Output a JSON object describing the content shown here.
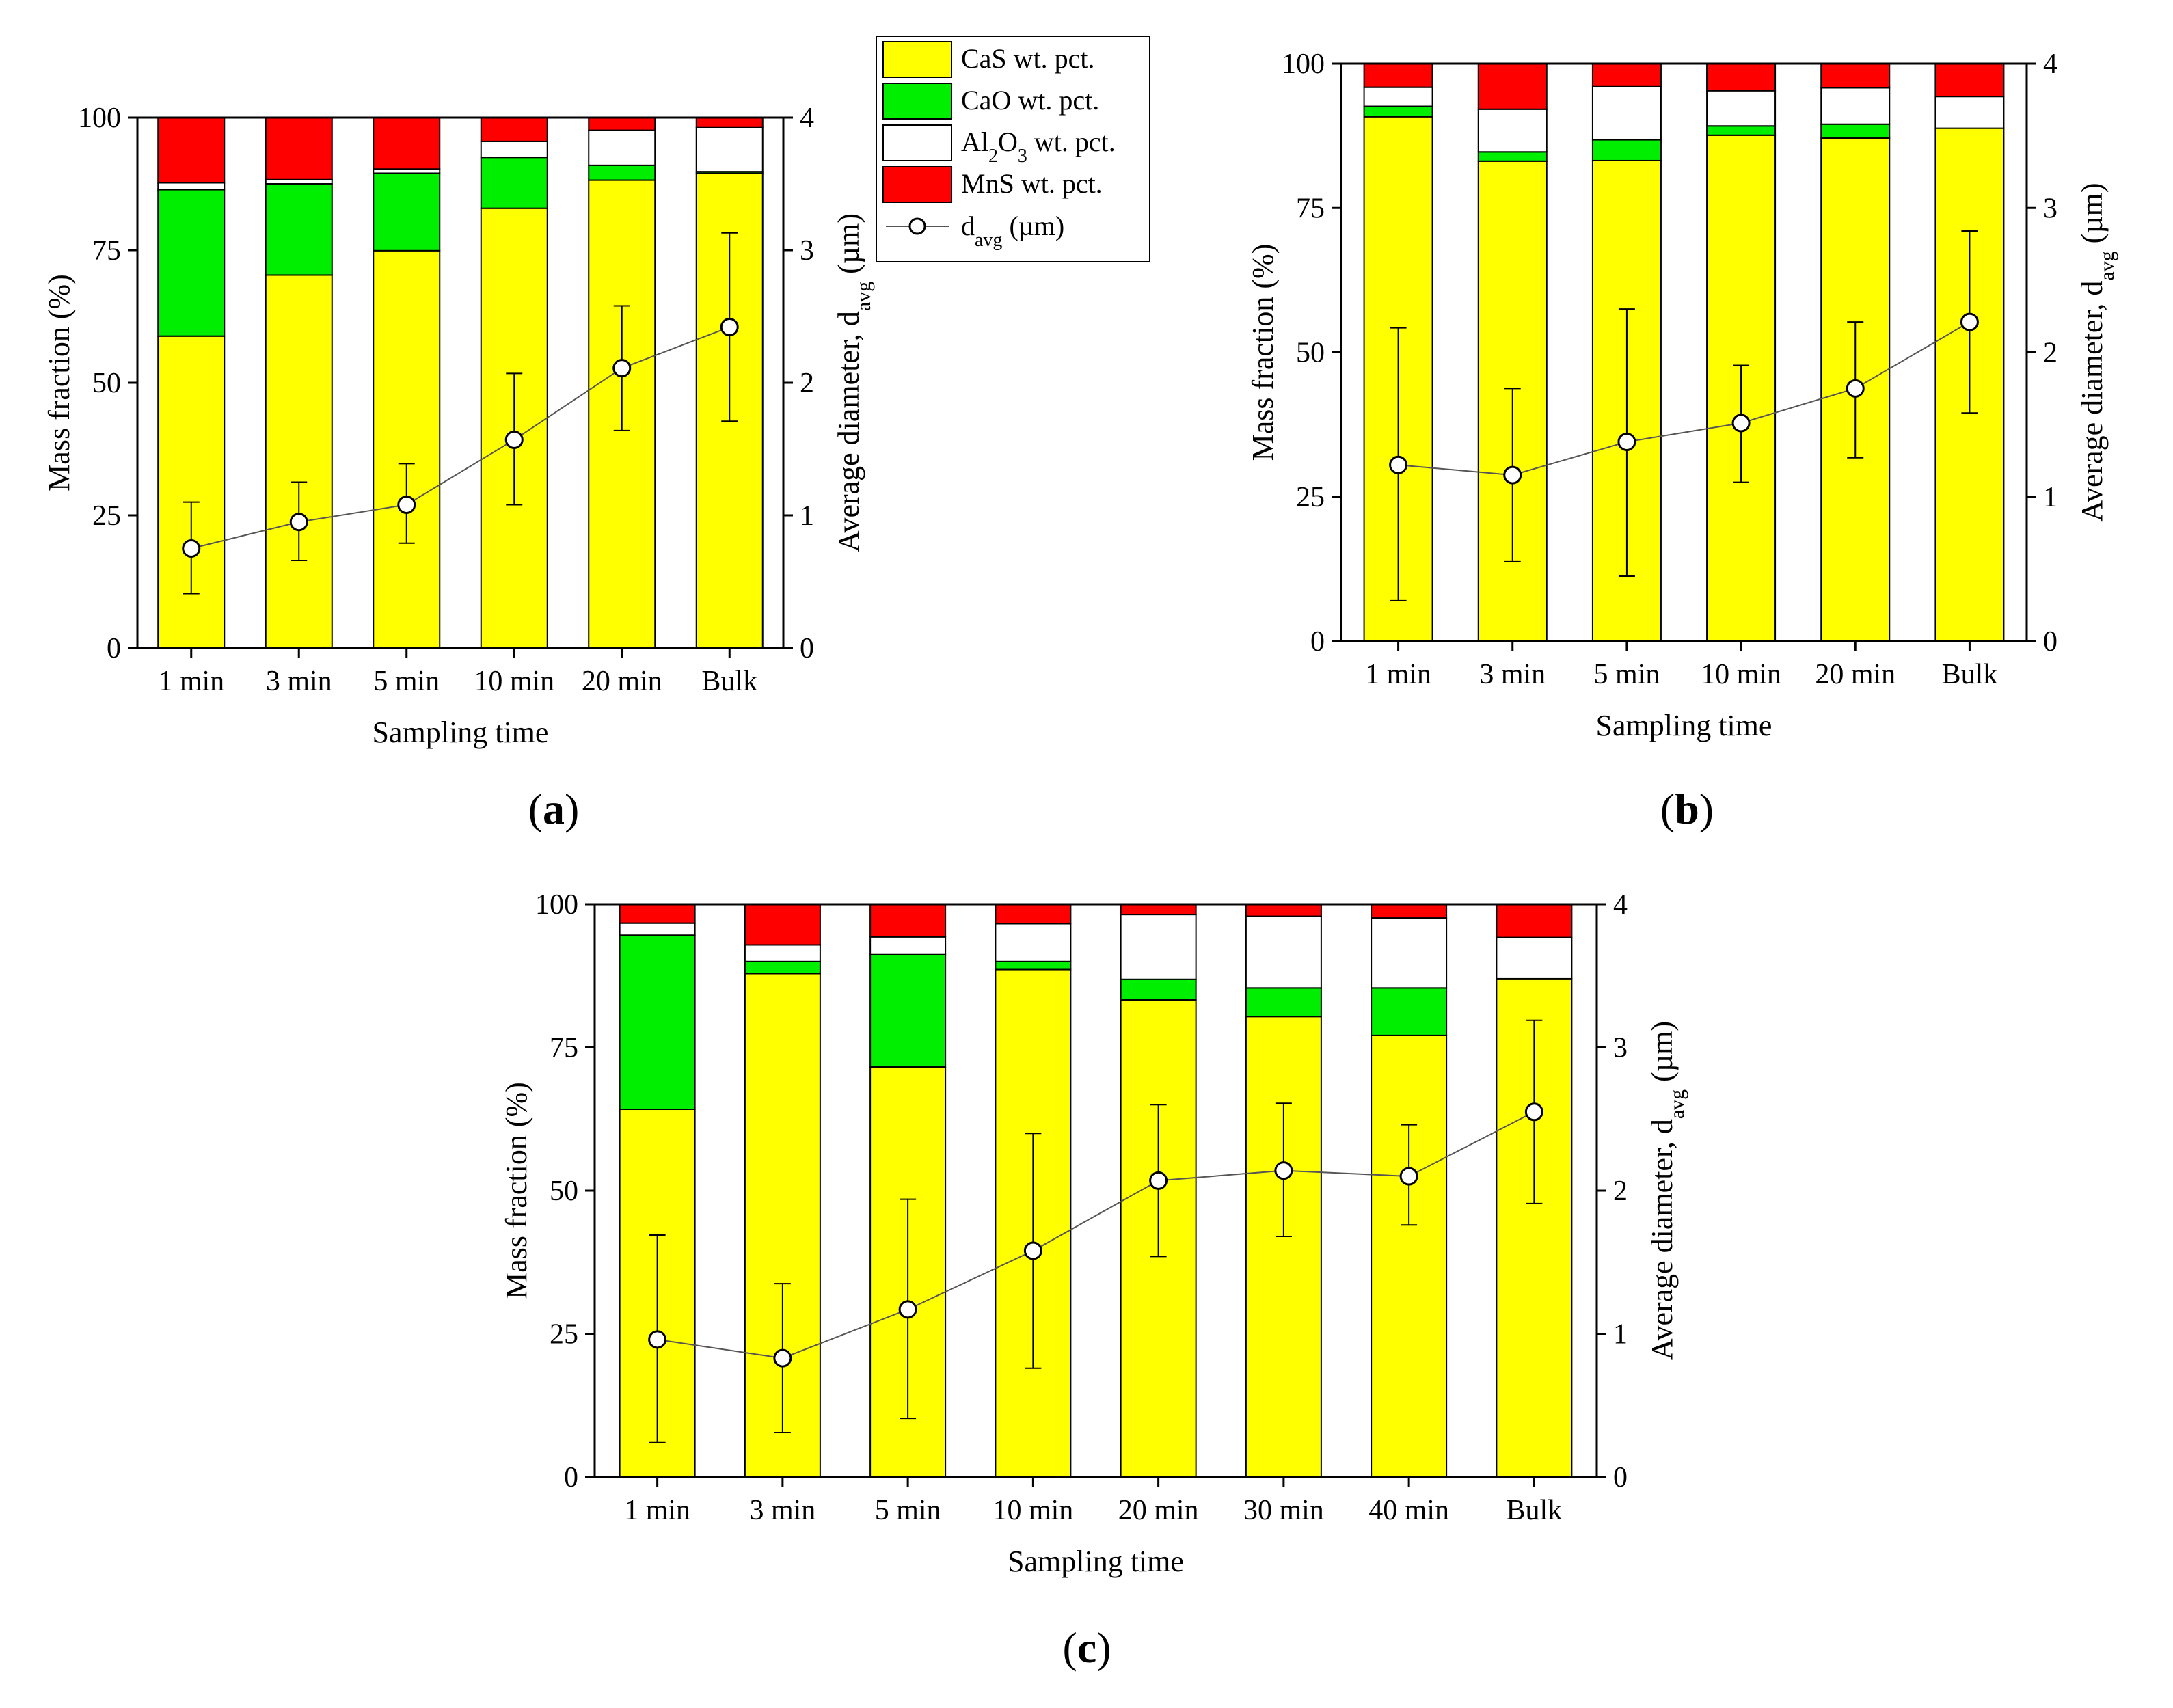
{
  "figure": {
    "legend": {
      "items": [
        {
          "key": "CaS",
          "color": "#ffff00",
          "label_main": "CaS wt. pct.",
          "label_pre": "",
          "label_sub1": "",
          "label_mid": "",
          "label_sub2": "",
          "label_post": ""
        },
        {
          "key": "CaO",
          "color": "#00ee00",
          "label_main": "CaO wt. pct.",
          "label_pre": "",
          "label_sub1": "",
          "label_mid": "",
          "label_sub2": "",
          "label_post": ""
        },
        {
          "key": "Al2O3",
          "color": "#ffffff",
          "label_main": "",
          "label_pre": "Al",
          "label_sub1": "2",
          "label_mid": "O",
          "label_sub2": "3",
          "label_post": " wt. pct."
        },
        {
          "key": "MnS",
          "color": "#ff0000",
          "label_main": "MnS wt. pct.",
          "label_pre": "",
          "label_sub1": "",
          "label_mid": "",
          "label_sub2": "",
          "label_post": ""
        }
      ],
      "line_label_pre": "d",
      "line_label_sub": "avg",
      "line_label_post": " (µm)"
    }
  },
  "chart_data": [
    {
      "type": "bar",
      "stacked": true,
      "panel_label": "(a)",
      "xlabel": "Sampling time",
      "ylabel": "Mass fraction (%)",
      "y2label_pre": "Average diameter, d",
      "y2label_sub": "avg",
      "y2label_post": " (µm)",
      "ylim": [
        0,
        100
      ],
      "y2lim": [
        0,
        4
      ],
      "yticks": [
        0,
        25,
        50,
        75,
        100
      ],
      "y2ticks": [
        0,
        1,
        2,
        3,
        4
      ],
      "categories": [
        "1 min",
        "3 min",
        "5 min",
        "10 min",
        "20 min",
        "Bulk"
      ],
      "series": [
        {
          "name": "CaS wt. pct.",
          "values": [
            58.8,
            70.3,
            74.9,
            82.9,
            88.2,
            89.5
          ]
        },
        {
          "name": "CaO wt. pct.",
          "values": [
            27.6,
            17.2,
            14.6,
            9.6,
            2.8,
            0.3
          ]
        },
        {
          "name": "Al2O3 wt. pct.",
          "values": [
            1.3,
            0.8,
            0.8,
            3.0,
            6.6,
            8.3
          ]
        },
        {
          "name": "MnS wt. pct.",
          "values": [
            12.3,
            11.7,
            9.7,
            4.5,
            2.4,
            1.9
          ]
        }
      ],
      "line": {
        "name": "d_avg (µm)",
        "values": [
          0.75,
          0.95,
          1.08,
          1.57,
          2.11,
          2.42
        ],
        "err_low": [
          0.41,
          0.66,
          0.79,
          1.08,
          1.64,
          1.71
        ],
        "err_high": [
          1.1,
          1.25,
          1.39,
          2.07,
          2.58,
          3.13
        ]
      }
    },
    {
      "type": "bar",
      "stacked": true,
      "panel_label": "(b)",
      "xlabel": "Sampling time",
      "ylabel": "Mass fraction (%)",
      "y2label_pre": "Average diameter, d",
      "y2label_sub": "avg",
      "y2label_post": " (µm)",
      "ylim": [
        0,
        100
      ],
      "y2lim": [
        0,
        4
      ],
      "yticks": [
        0,
        25,
        50,
        75,
        100
      ],
      "y2ticks": [
        0,
        1,
        2,
        3,
        4
      ],
      "categories": [
        "1 min",
        "3 min",
        "5 min",
        "10 min",
        "20 min",
        "Bulk"
      ],
      "series": [
        {
          "name": "CaS wt. pct.",
          "values": [
            90.8,
            83.1,
            83.2,
            87.6,
            87.1,
            88.8
          ]
        },
        {
          "name": "CaO wt. pct.",
          "values": [
            1.8,
            1.6,
            3.6,
            1.6,
            2.4,
            0.0
          ]
        },
        {
          "name": "Al2O3 wt. pct.",
          "values": [
            3.3,
            7.4,
            9.2,
            6.1,
            6.3,
            5.5
          ]
        },
        {
          "name": "MnS wt. pct.",
          "values": [
            4.1,
            7.9,
            4.0,
            4.7,
            4.2,
            5.7
          ]
        }
      ],
      "line": {
        "name": "d_avg (µm)",
        "values": [
          1.22,
          1.15,
          1.38,
          1.51,
          1.75,
          2.21
        ],
        "err_low": [
          0.28,
          0.55,
          0.45,
          1.1,
          1.27,
          1.58
        ],
        "err_high": [
          2.17,
          1.75,
          2.3,
          1.91,
          2.21,
          2.84
        ]
      }
    },
    {
      "type": "bar",
      "stacked": true,
      "panel_label": "(c)",
      "xlabel": "Sampling time",
      "ylabel": "Mass fraction (%)",
      "y2label_pre": "Average diameter, d",
      "y2label_sub": "avg",
      "y2label_post": " (µm)",
      "ylim": [
        0,
        100
      ],
      "y2lim": [
        0,
        4
      ],
      "yticks": [
        0,
        25,
        50,
        75,
        100
      ],
      "y2ticks": [
        0,
        1,
        2,
        3,
        4
      ],
      "categories": [
        "1 min",
        "3 min",
        "5 min",
        "10 min",
        "20 min",
        "30 min",
        "40 min",
        "Bulk"
      ],
      "series": [
        {
          "name": "CaS wt. pct.",
          "values": [
            64.2,
            87.9,
            71.6,
            88.6,
            83.3,
            80.4,
            77.1,
            86.9
          ]
        },
        {
          "name": "CaO wt. pct.",
          "values": [
            30.4,
            2.1,
            19.6,
            1.4,
            3.6,
            5.0,
            8.3,
            0.1
          ]
        },
        {
          "name": "Al2O3 wt. pct.",
          "values": [
            2.1,
            2.9,
            3.1,
            6.6,
            11.3,
            12.5,
            12.2,
            7.2
          ]
        },
        {
          "name": "MnS wt. pct.",
          "values": [
            3.3,
            7.1,
            5.7,
            3.4,
            1.8,
            2.1,
            2.4,
            5.8
          ]
        }
      ],
      "line": {
        "name": "d_avg (µm)",
        "values": [
          0.96,
          0.83,
          1.17,
          1.58,
          2.07,
          2.14,
          2.1,
          2.55
        ],
        "err_low": [
          0.24,
          0.31,
          0.41,
          0.76,
          1.54,
          1.68,
          1.76,
          1.91
        ],
        "err_high": [
          1.69,
          1.35,
          1.94,
          2.4,
          2.6,
          2.61,
          2.46,
          3.19
        ]
      }
    }
  ]
}
